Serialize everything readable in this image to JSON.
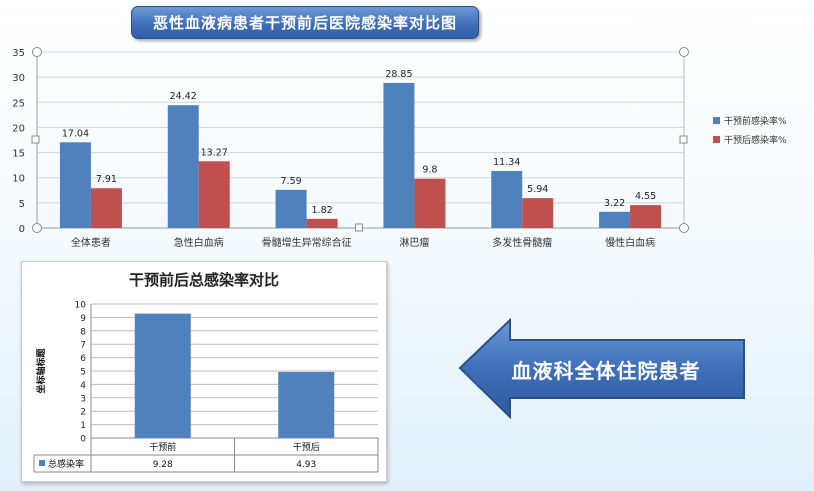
{
  "chart_data": [
    {
      "type": "bar",
      "title": "恶性血液病患者干预前后医院感染率对比图",
      "categories": [
        "全体患者",
        "急性白血病",
        "骨髓增生异常综合征",
        "淋巴瘤",
        "多发性骨髓瘤",
        "慢性白血病"
      ],
      "series": [
        {
          "name": "干预前感染率%",
          "color": "#4f81bd",
          "values": [
            17.04,
            24.42,
            7.59,
            28.85,
            11.34,
            3.22
          ]
        },
        {
          "name": "干预后感染率%",
          "color": "#c0504d",
          "values": [
            7.91,
            13.27,
            1.82,
            9.8,
            5.94,
            4.55
          ]
        }
      ],
      "ylim": [
        0,
        35
      ],
      "yticks": [
        0,
        5,
        10,
        15,
        20,
        25,
        30,
        35
      ],
      "grid": true,
      "legend": "right"
    },
    {
      "type": "bar",
      "title": "干预前后总感染率对比",
      "categories": [
        "干预前",
        "干预后"
      ],
      "series": [
        {
          "name": "总感染率",
          "color": "#4f81bd",
          "values": [
            9.28,
            4.93
          ]
        }
      ],
      "ylabel": "坐标轴标题",
      "ylim": [
        0,
        10
      ],
      "yticks": [
        0,
        1,
        2,
        3,
        4,
        5,
        6,
        7,
        8,
        9,
        10
      ],
      "grid": true,
      "legend": "data-table"
    }
  ],
  "callout": {
    "text": "血液科全体住院患者"
  }
}
